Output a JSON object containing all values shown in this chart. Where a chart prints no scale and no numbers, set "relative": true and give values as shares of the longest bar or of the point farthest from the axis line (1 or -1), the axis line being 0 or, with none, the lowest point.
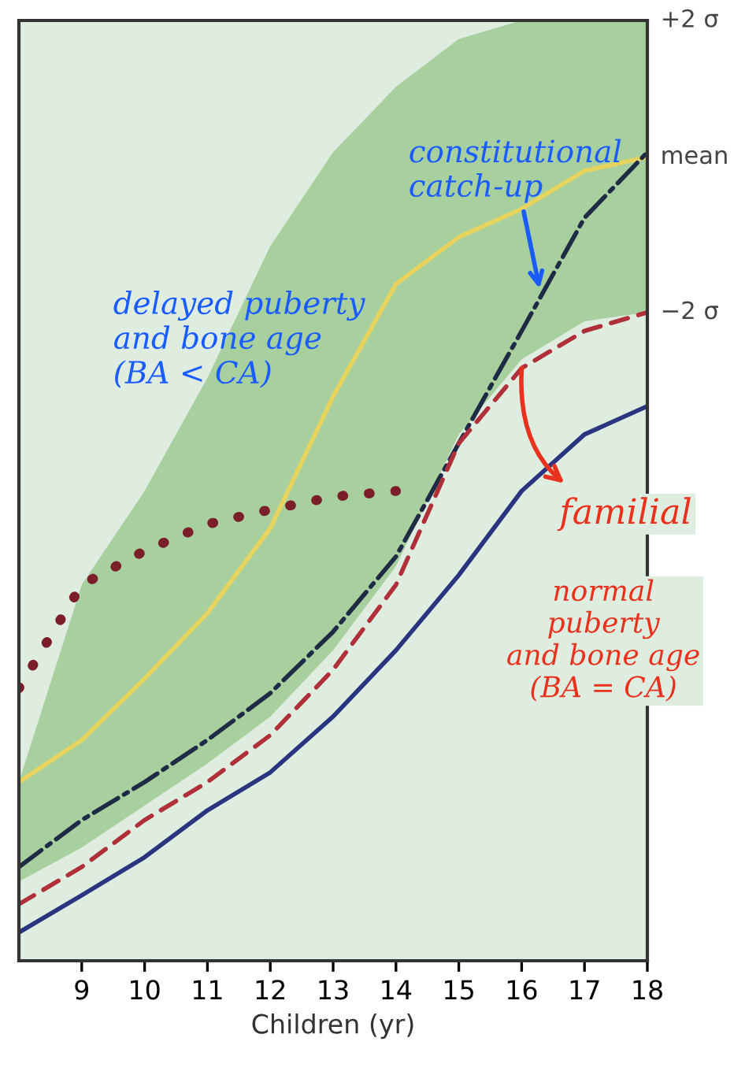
{
  "chart_data": {
    "type": "line",
    "xlabel": "Children (yr)",
    "relative": true,
    "xlim": [
      8,
      18
    ],
    "xticks": [
      9,
      10,
      11,
      12,
      13,
      14,
      15,
      16,
      17,
      18
    ],
    "tick_labels": "x",
    "grid": false,
    "x": [
      8,
      9,
      10,
      11,
      12,
      13,
      14,
      15,
      16,
      17,
      18
    ],
    "series": [
      {
        "color": "#e6d45e",
        "values": [
          0.221,
          0.273,
          0.349,
          0.43,
          0.535,
          0.698,
          0.837,
          0.895,
          0.93,
          0.977,
          0.994
        ],
        "lower": [
          0.098,
          0.14,
          0.192,
          0.244,
          0.302,
          0.384,
          0.488,
          0.651,
          0.744,
          0.791,
          0.802
        ],
        "upper": [
          0.221,
          0.465,
          0.581,
          0.721,
          0.884,
          1.0,
          1.081,
          1.14,
          1.163,
          1.163,
          1.163
        ],
        "line_style": "solid"
      },
      {
        "color": "#1f2a44",
        "values": [
          0.116,
          0.174,
          0.221,
          0.273,
          0.331,
          0.407,
          0.5,
          0.64,
          0.779,
          0.919,
          1.0
        ],
        "line_style": "dashdot"
      },
      {
        "color": "#b0303a",
        "values": [
          0.07,
          0.116,
          0.174,
          0.221,
          0.279,
          0.36,
          0.465,
          0.64,
          0.733,
          0.779,
          0.802
        ],
        "line_style": "dashed"
      },
      {
        "color": "#2a3580",
        "values": [
          0.035,
          0.081,
          0.128,
          0.186,
          0.233,
          0.302,
          0.384,
          0.477,
          0.581,
          0.651,
          0.686
        ],
        "line_style": "solid"
      },
      {
        "color": "#7a1f2a",
        "x": [
          8,
          9,
          10,
          11,
          12,
          13,
          14
        ],
        "values": [
          0.337,
          0.465,
          0.507,
          0.54,
          0.558,
          0.574,
          0.581
        ],
        "line_style": "dotted"
      }
    ],
    "annotations": [
      {
        "text": "+2 σ",
        "x": 18,
        "y": 1.163
      },
      {
        "text": "mean",
        "x": 18,
        "y": 0.994
      },
      {
        "text": "−2 σ",
        "x": 18,
        "y": 0.802
      },
      {
        "text": "constitutional\ncatch-up",
        "x": 16.3,
        "y": 0.826
      },
      "delayed puberty\nand bone age\n(BA < CA)",
      {
        "text": "familial",
        "x": 16.0,
        "y": 0.733
      },
      "normal\npuberty\nand bone age\n(BA = CA)"
    ]
  }
}
